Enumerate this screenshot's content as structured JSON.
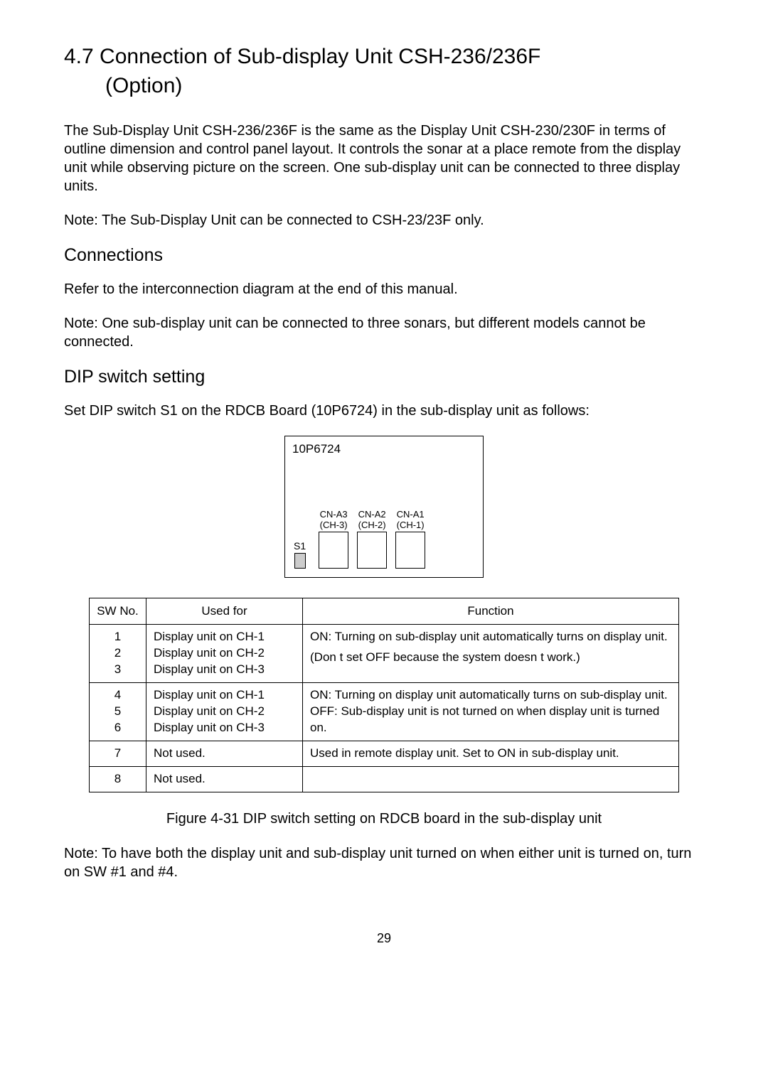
{
  "title_line1": "4.7 Connection of Sub-display Unit CSH-236/236F",
  "title_line2": "(Option)",
  "para1": "The Sub-Display Unit CSH-236/236F is the same as the Display Unit CSH-230/230F in terms of outline dimension and control panel layout. It controls the sonar at a place remote from the display unit while observing picture on the screen. One sub-display unit can be connected to three display units.",
  "para2": "Note: The Sub-Display Unit can be connected to CSH-23/23F only.",
  "sub1": "Connections",
  "para3": "Refer to the interconnection diagram at the end of this manual.",
  "para4": "Note: One sub-display unit can be connected to three sonars, but different models cannot be connected.",
  "sub2": "DIP switch setting",
  "para5": "Set DIP switch S1 on the RDCB Board (10P6724) in the sub-display unit as follows:",
  "diagram": {
    "board": "10P6724",
    "s1": "S1",
    "conns": [
      {
        "top": "CN-A3",
        "bot": "(CH-3)"
      },
      {
        "top": "CN-A2",
        "bot": "(CH-2)"
      },
      {
        "top": "CN-A1",
        "bot": "(CH-1)"
      }
    ]
  },
  "table": {
    "head": {
      "c1": "SW No.",
      "c2": "Used for",
      "c3": "Function"
    },
    "rows": [
      {
        "swno": "1\n2\n3",
        "used": "Display unit on CH-1\nDisplay unit on CH-2\nDisplay unit on CH-3",
        "func_a": "ON: Turning on sub-display unit automatically turns on display unit.",
        "func_b": "(Don t set OFF because the system doesn t work.)"
      },
      {
        "swno": "4\n5\n6",
        "used": "Display unit on CH-1\nDisplay unit on CH-2\nDisplay unit on CH-3",
        "func_a": "ON: Turning on display unit automatically turns on sub-display unit.\nOFF: Sub-display unit is not turned on when display unit is turned on.",
        "func_b": ""
      },
      {
        "swno": "7",
        "used": "Not used.",
        "func_a": "Used in remote display unit. Set to ON in sub-display unit.",
        "func_b": ""
      },
      {
        "swno": "8",
        "used": "Not used.",
        "func_a": "",
        "func_b": ""
      }
    ]
  },
  "caption": "Figure 4-31 DIP switch setting on RDCB board in the sub-display unit",
  "note_bottom": "Note: To have both the display unit and sub-display unit turned on when either unit is turned on, turn on SW #1 and #4.",
  "pagenum": "29"
}
